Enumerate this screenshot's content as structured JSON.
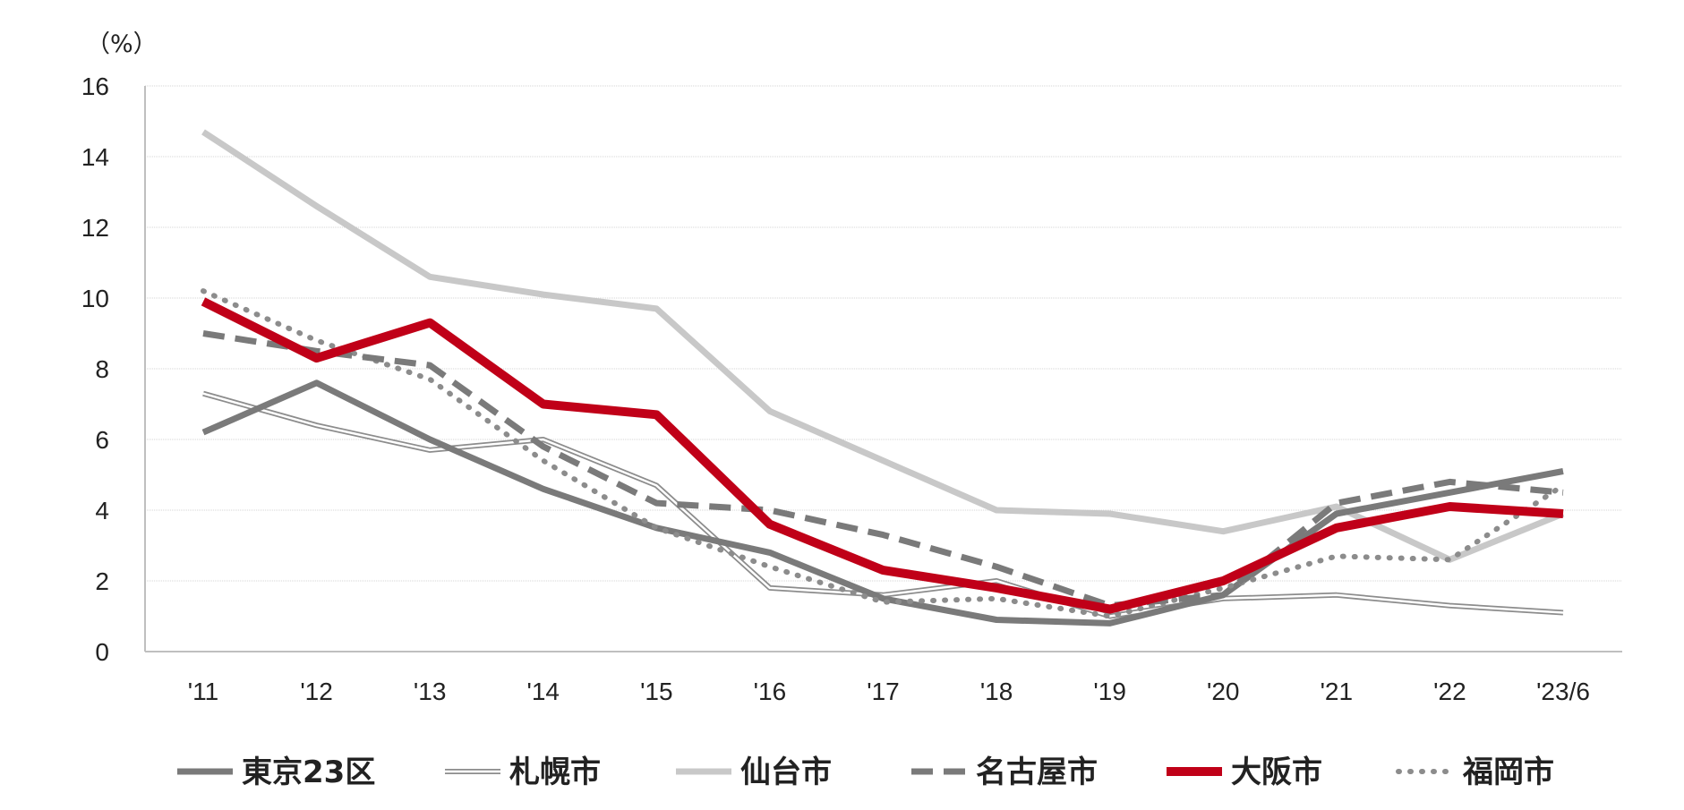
{
  "chart_data": {
    "type": "line",
    "unit_label": "（%）",
    "categories": [
      "'11",
      "'12",
      "'13",
      "'14",
      "'15",
      "'16",
      "'17",
      "'18",
      "'19",
      "'20",
      "'21",
      "'22",
      "'23/6"
    ],
    "ylim": [
      0,
      16
    ],
    "yticks": [
      "0",
      "2",
      "4",
      "6",
      "8",
      "10",
      "12",
      "14",
      "16"
    ],
    "grid": true,
    "legend_position": "bottom",
    "series": [
      {
        "name": "東京23区",
        "color": "#7a7a7a",
        "style": "solid-thick",
        "values": [
          6.2,
          7.6,
          6.0,
          4.6,
          3.5,
          2.8,
          1.5,
          0.9,
          0.8,
          1.6,
          3.9,
          4.5,
          5.1
        ]
      },
      {
        "name": "札幌市",
        "color": "#8c8c8c",
        "style": "double",
        "values": [
          7.3,
          6.4,
          5.7,
          6.0,
          4.7,
          1.8,
          1.6,
          2.0,
          1.0,
          1.5,
          1.6,
          1.3,
          1.1
        ]
      },
      {
        "name": "仙台市",
        "color": "#c8c8c8",
        "style": "solid",
        "values": [
          14.7,
          12.6,
          10.6,
          10.1,
          9.7,
          6.8,
          5.4,
          4.0,
          3.9,
          3.4,
          4.1,
          2.6,
          3.9
        ]
      },
      {
        "name": "名古屋市",
        "color": "#7a7a7a",
        "style": "dashed",
        "values": [
          9.0,
          8.5,
          8.1,
          5.8,
          4.2,
          4.0,
          3.3,
          2.4,
          1.3,
          1.6,
          4.2,
          4.8,
          4.5
        ]
      },
      {
        "name": "大阪市",
        "color": "#c00018",
        "style": "solid-bold",
        "values": [
          9.9,
          8.3,
          9.3,
          7.0,
          6.7,
          3.6,
          2.3,
          1.8,
          1.2,
          2.0,
          3.5,
          4.1,
          3.9
        ]
      },
      {
        "name": "福岡市",
        "color": "#8c8c8c",
        "style": "dotted",
        "values": [
          10.2,
          8.8,
          7.7,
          5.4,
          3.5,
          2.4,
          1.4,
          1.5,
          1.0,
          1.8,
          2.7,
          2.6,
          4.7
        ]
      }
    ]
  }
}
